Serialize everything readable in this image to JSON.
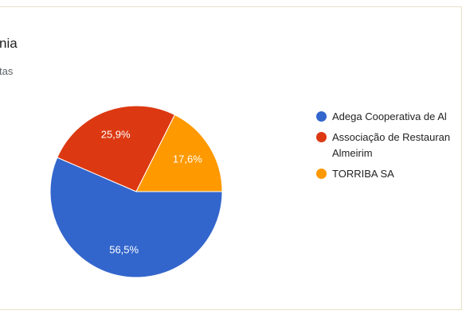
{
  "chart_data": {
    "type": "pie",
    "title": "nia",
    "subtitle": "tas",
    "categories": [
      "Adega Cooperativa de Al",
      "Associação de Restauran\nAlmeirim",
      "TORRIBA SA"
    ],
    "values": [
      56.5,
      25.9,
      17.6
    ],
    "value_labels": [
      "56,5%",
      "25,9%",
      "17,6%"
    ],
    "colors": [
      "#3366cc",
      "#dc3912",
      "#ff9900"
    ],
    "legend": "right"
  }
}
